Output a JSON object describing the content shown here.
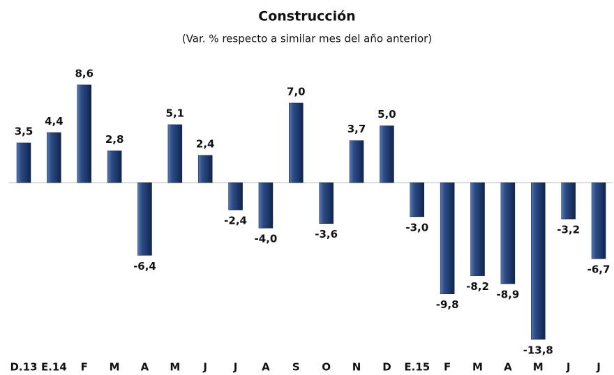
{
  "chart_data": {
    "type": "bar",
    "title": "Construcción",
    "subtitle": "(Var. % respecto a similar mes del año anterior)",
    "categories": [
      "D.13",
      "E.14",
      "F",
      "M",
      "A",
      "M",
      "J",
      "J",
      "A",
      "S",
      "O",
      "N",
      "D",
      "E.15",
      "F",
      "M",
      "A",
      "M",
      "J",
      "J"
    ],
    "values": [
      3.5,
      4.4,
      8.6,
      2.8,
      -6.4,
      5.1,
      2.4,
      -2.4,
      -4.0,
      7.0,
      -3.6,
      3.7,
      5.0,
      -3.0,
      -9.8,
      -8.2,
      -8.9,
      -13.8,
      -3.2,
      -6.7
    ],
    "value_labels": [
      "3,5",
      "4,4",
      "8,6",
      "2,8",
      "-6,4",
      "5,1",
      "2,4",
      "-2,4",
      "-4,0",
      "7,0",
      "-3,6",
      "3,7",
      "5,0",
      "-3,0",
      "-9,8",
      "-8,2",
      "-8,9",
      "-13,8",
      "-3,2",
      "-6,7"
    ],
    "color": "#1f3b6e"
  }
}
